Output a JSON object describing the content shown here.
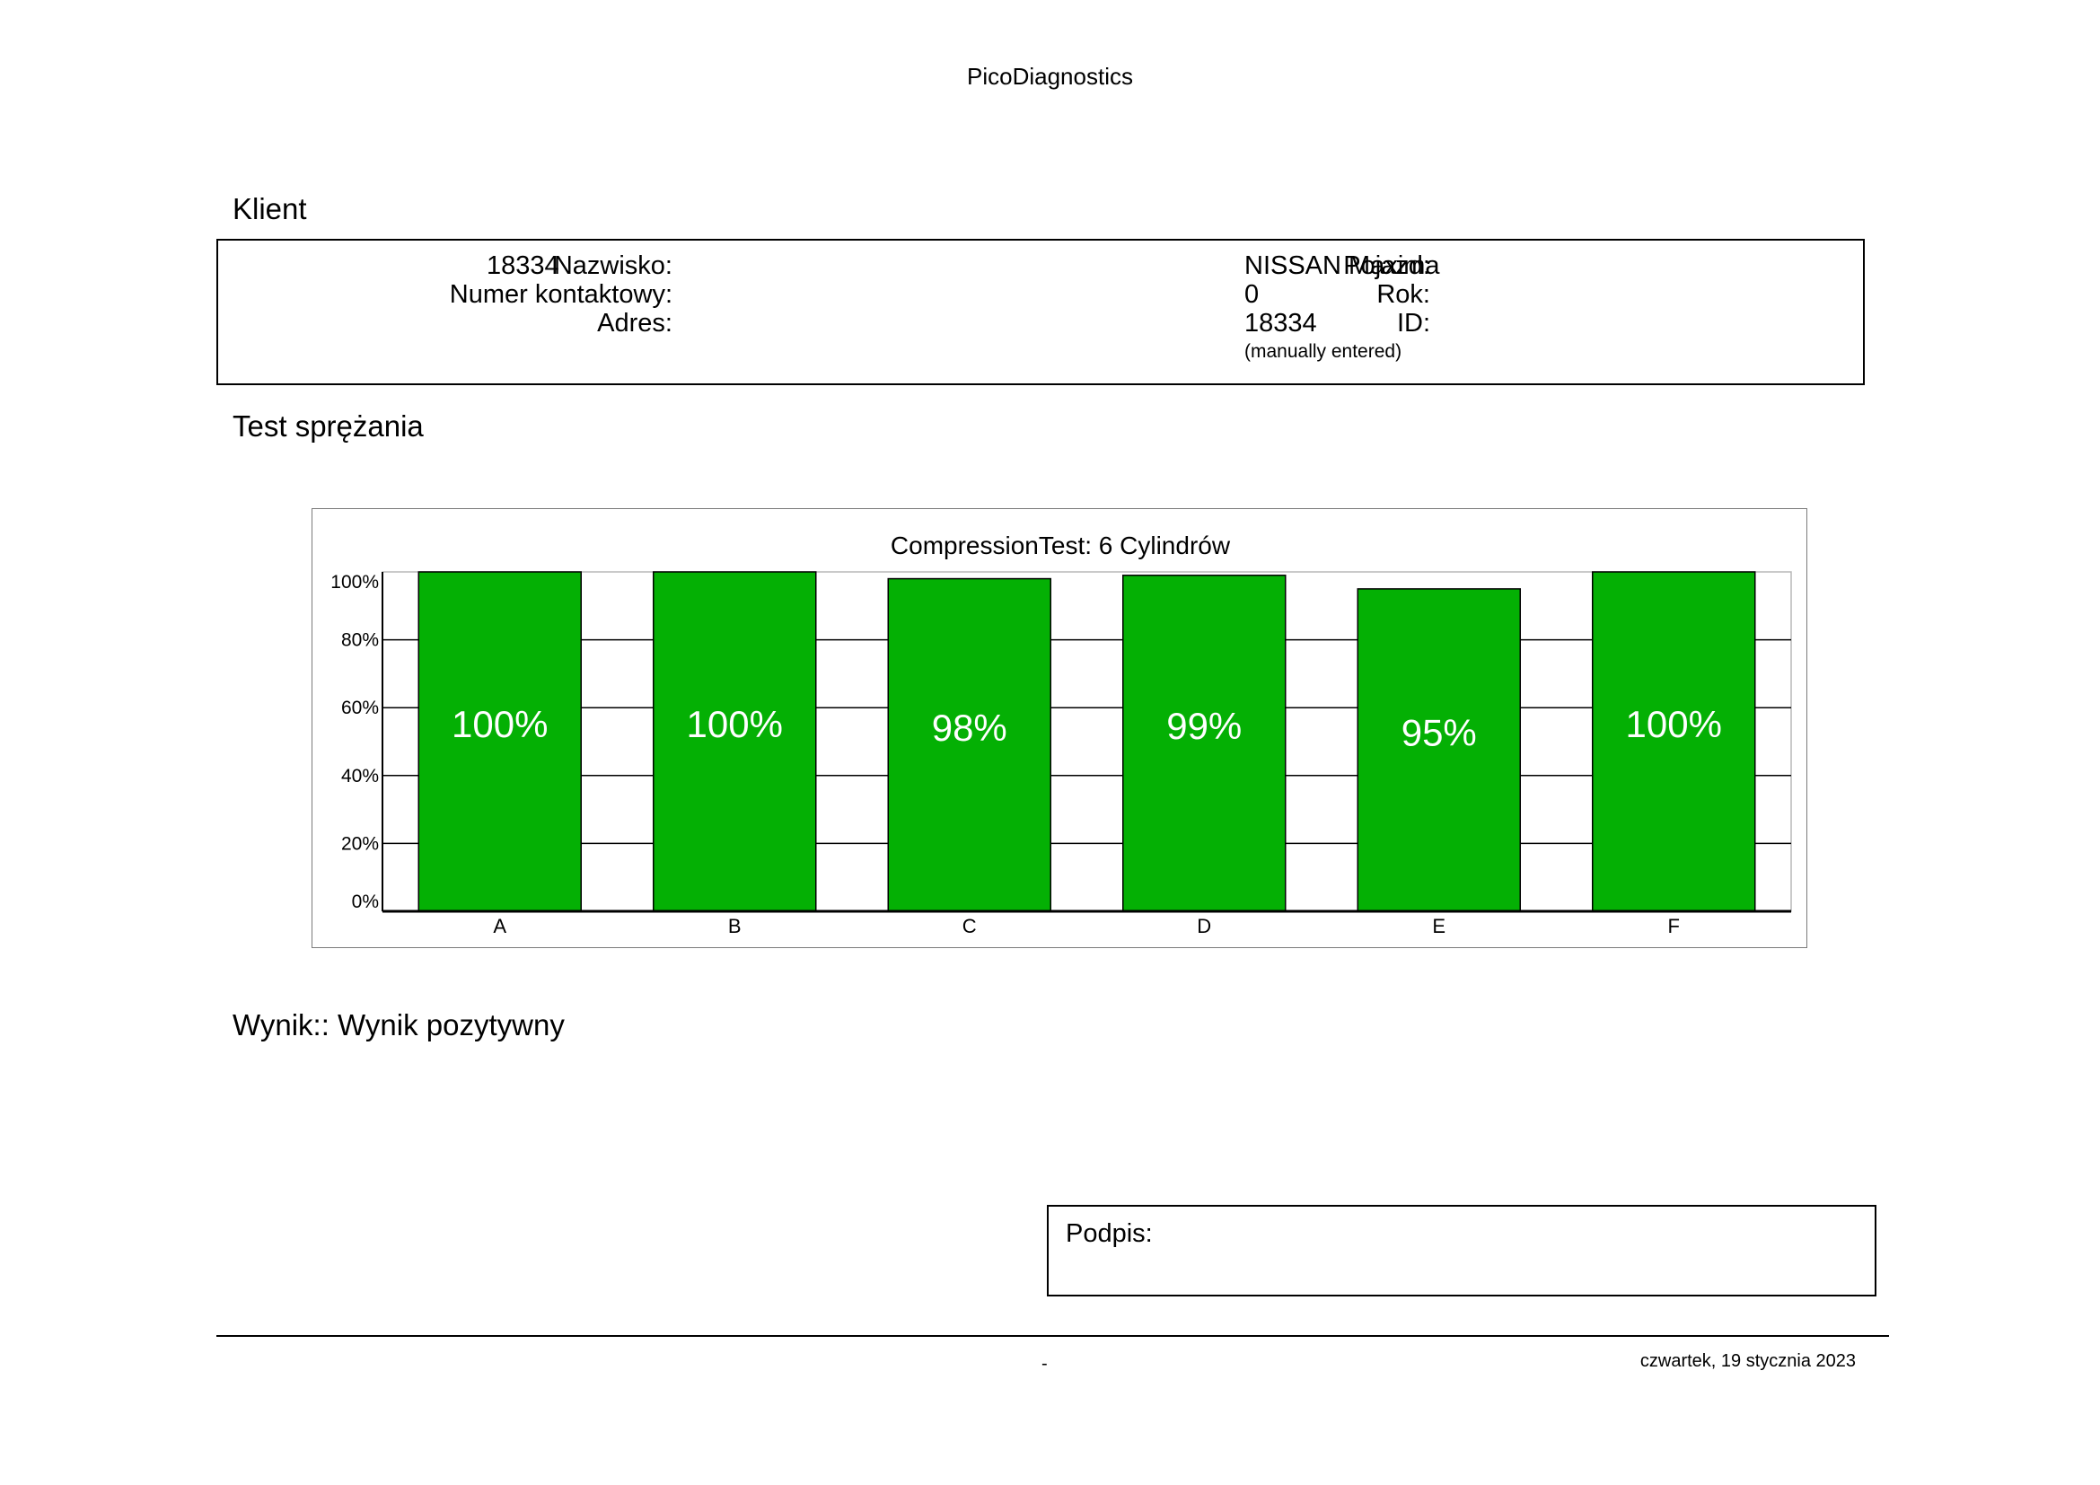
{
  "header": {
    "title": "PicoDiagnostics"
  },
  "client": {
    "heading": "Klient",
    "name_label": "Nazwisko:",
    "name_value": "18334",
    "contact_label": "Numer kontaktowy:",
    "contact_value": "",
    "address_label": "Adres:",
    "address_value": "",
    "vehicle_label": "Pojazd:",
    "vehicle_value": "NISSAN Maxima",
    "year_label": "Rok:",
    "year_value": "0",
    "id_label": "ID:",
    "id_value": "18334",
    "id_note": "(manually entered)"
  },
  "compression": {
    "heading": "Test sprężania"
  },
  "chart_data": {
    "type": "bar",
    "title": "CompressionTest: 6 Cylindrów",
    "categories": [
      "A",
      "B",
      "C",
      "D",
      "E",
      "F"
    ],
    "values": [
      100,
      100,
      98,
      99,
      95,
      100
    ],
    "value_labels": [
      "100%",
      "100%",
      "98%",
      "99%",
      "95%",
      "100%"
    ],
    "ylim": [
      0,
      100
    ],
    "yticks": [
      0,
      20,
      40,
      60,
      80,
      100
    ],
    "ytick_labels": [
      "0%",
      "20%",
      "40%",
      "60%",
      "80%",
      "100%"
    ],
    "bar_color": "#04b004",
    "label_color": "#ffffff",
    "grid": true,
    "xlabel": "",
    "ylabel": ""
  },
  "result": {
    "text": "Wynik:: Wynik pozytywny"
  },
  "signature": {
    "label": "Podpis:"
  },
  "footer": {
    "page_marker": "-",
    "date": "czwartek, 19 stycznia 2023"
  }
}
